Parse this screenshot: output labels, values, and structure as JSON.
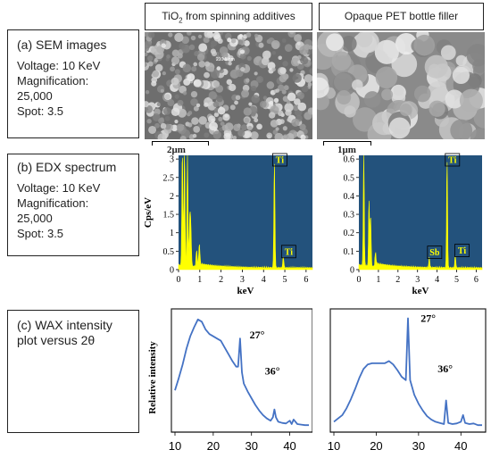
{
  "headers": {
    "left": "TiO2 from spinning additives",
    "right": "Opaque PET bottle filler"
  },
  "panels": {
    "sem": {
      "title": "(a) SEM images",
      "lines": [
        "Voltage: 10 KeV",
        "Magnification:",
        "25,000",
        "Spot: 3.5"
      ],
      "scale_left": "2μm",
      "scale_right": "1μm",
      "marker_text": "210.5 nm"
    },
    "edx": {
      "title": "(b) EDX spectrum",
      "lines": [
        "Voltage: 10 KeV",
        "Magnification:",
        "25,000",
        "Spot: 3.5"
      ]
    },
    "wax": {
      "title": "(c) WAX intensity",
      "lines": [
        "plot versus 2θ"
      ]
    }
  },
  "chart_data": [
    {
      "type": "line",
      "panel": "EDX left",
      "xlabel": "keV",
      "ylabel": "Cps/eV",
      "xlim": [
        0,
        6.3
      ],
      "ylim": [
        0,
        3.1
      ],
      "xticks": [
        0,
        1,
        2,
        3,
        4,
        5,
        6
      ],
      "yticks": [
        0,
        0.5,
        1,
        1.5,
        2,
        2.5,
        3
      ],
      "ytick_labels": [
        "0",
        "0.5",
        "1",
        "1.5",
        "2",
        "2.5",
        "3"
      ],
      "peaks": [
        [
          0.18,
          3.1
        ],
        [
          0.28,
          3.1
        ],
        [
          0.42,
          3.1
        ],
        [
          0.53,
          1.35
        ],
        [
          0.58,
          1.0
        ],
        [
          0.85,
          0.35
        ],
        [
          0.98,
          0.55
        ],
        [
          4.51,
          2.85
        ],
        [
          4.93,
          0.3
        ]
      ],
      "peak_labels": [
        {
          "text": "Ti",
          "x": 4.51,
          "y": 2.85
        },
        {
          "text": "Ti",
          "x": 4.93,
          "y": 0.32
        }
      ],
      "bg_color": "#23527c",
      "line_color": "#ffff00"
    },
    {
      "type": "line",
      "panel": "EDX right",
      "xlabel": "keV",
      "ylabel": "",
      "xlim": [
        0,
        6.3
      ],
      "ylim": [
        0,
        0.62
      ],
      "xticks": [
        0,
        1,
        2,
        3,
        4,
        5,
        6
      ],
      "yticks": [
        0,
        0.1,
        0.2,
        0.3,
        0.4,
        0.5,
        0.6
      ],
      "ytick_labels": [
        "0",
        "0.1",
        "0.2",
        "0.3",
        "0.4",
        "0.5",
        "0.6"
      ],
      "peaks": [
        [
          0.25,
          0.62
        ],
        [
          0.52,
          0.36
        ],
        [
          0.6,
          0.28
        ],
        [
          0.85,
          0.06
        ],
        [
          3.6,
          0.055
        ],
        [
          4.51,
          0.58
        ],
        [
          4.93,
          0.065
        ]
      ],
      "peak_labels": [
        {
          "text": "Ti",
          "x": 4.51,
          "y": 0.58
        },
        {
          "text": "Sb",
          "x": 3.6,
          "y": 0.06
        },
        {
          "text": "Ti",
          "x": 5.0,
          "y": 0.07
        }
      ],
      "bg_color": "#23527c",
      "line_color": "#ffff00"
    },
    {
      "type": "line",
      "panel": "WAX left",
      "ylabel": "Relative intensity",
      "xlim": [
        10,
        45
      ],
      "xticks": [
        10,
        20,
        30,
        40
      ],
      "x": [
        10,
        11,
        12,
        13,
        14,
        15,
        16,
        17,
        18,
        19,
        20,
        21,
        22,
        23,
        24,
        25,
        26,
        26.5,
        27,
        27.5,
        28,
        29,
        30,
        31,
        32,
        33,
        34,
        35,
        35.6,
        36,
        36.4,
        37,
        38,
        39,
        40,
        40.5,
        41,
        42,
        43,
        44,
        45
      ],
      "y": [
        0.34,
        0.45,
        0.57,
        0.71,
        0.82,
        0.9,
        0.97,
        0.95,
        0.88,
        0.84,
        0.82,
        0.8,
        0.78,
        0.72,
        0.66,
        0.6,
        0.55,
        0.55,
        0.8,
        0.5,
        0.4,
        0.33,
        0.27,
        0.21,
        0.16,
        0.12,
        0.09,
        0.07,
        0.1,
        0.17,
        0.1,
        0.06,
        0.05,
        0.045,
        0.07,
        0.04,
        0.08,
        0.04,
        0.035,
        0.03,
        0.03
      ],
      "annotations": [
        {
          "text": "27°",
          "x": 29.5,
          "y": 0.8
        },
        {
          "text": "36°",
          "x": 33.5,
          "y": 0.48
        }
      ],
      "line_color": "#4472c4"
    },
    {
      "type": "line",
      "panel": "WAX right",
      "xlim": [
        10,
        45
      ],
      "xticks": [
        10,
        20,
        30,
        40
      ],
      "x": [
        10,
        11,
        12,
        13,
        14,
        15,
        16,
        17,
        18,
        19,
        20,
        21,
        22,
        23,
        24,
        25,
        26,
        27,
        27.5,
        28,
        29,
        30,
        31,
        32,
        33,
        34,
        35,
        36,
        36.5,
        37,
        38,
        39,
        40,
        40.5,
        41,
        42,
        43,
        44,
        45
      ],
      "y": [
        0.06,
        0.09,
        0.12,
        0.18,
        0.26,
        0.35,
        0.45,
        0.53,
        0.57,
        0.58,
        0.58,
        0.58,
        0.58,
        0.6,
        0.57,
        0.52,
        0.46,
        0.43,
        0.98,
        0.43,
        0.3,
        0.22,
        0.16,
        0.11,
        0.08,
        0.06,
        0.05,
        0.04,
        0.25,
        0.05,
        0.04,
        0.045,
        0.06,
        0.12,
        0.05,
        0.04,
        0.045,
        0.03,
        0.03
      ],
      "annotations": [
        {
          "text": "27°",
          "x": 30.5,
          "y": 0.95
        },
        {
          "text": "36°",
          "x": 34.5,
          "y": 0.5
        }
      ],
      "line_color": "#4472c4"
    }
  ]
}
